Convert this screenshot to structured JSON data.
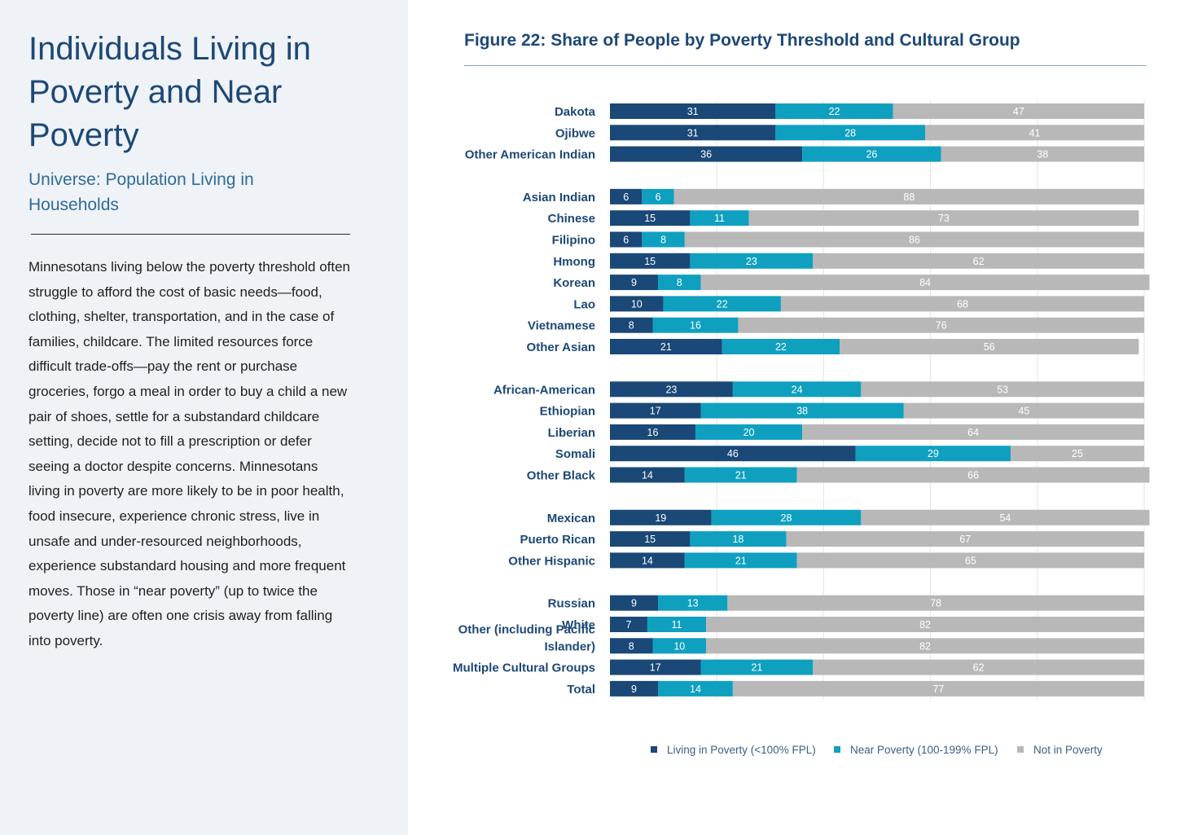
{
  "sidebar": {
    "title": "Individuals Living in Poverty and Near Poverty",
    "subtitle": "Universe: Population Living in Households",
    "body": "Minnesotans living below the poverty threshold often struggle to afford the cost of basic needs—food, clothing, shelter, transportation, and in the case of families, childcare. The limited resources force difficult trade-offs—pay the rent or purchase groceries, forgo a meal in order to buy a child a new pair of shoes, settle for a substandard childcare setting, decide not to fill a prescription or defer seeing a doctor despite concerns. Minnesotans living in poverty are more likely to be in poor health, food insecure, experience chronic stress, live in unsafe and under-resourced neighborhoods, experience substandard housing and more frequent moves. Those in “near poverty” (up to twice the poverty line) are often one crisis away from falling into poverty."
  },
  "chart_data": {
    "type": "bar",
    "orientation": "horizontal",
    "stacked": true,
    "title": "Figure 22: Share of People by Poverty Threshold and Cultural Group",
    "xlim": [
      0,
      100
    ],
    "grid": true,
    "legend_position": "bottom",
    "groups": [
      [
        "Dakota",
        "Ojibwe",
        "Other American Indian"
      ],
      [
        "Asian Indian",
        "Chinese",
        "Filipino",
        "Hmong",
        "Korean",
        "Lao",
        "Vietnamese",
        "Other Asian"
      ],
      [
        "African-American",
        "Ethiopian",
        "Liberian",
        "Somali",
        "Other Black"
      ],
      [
        "Mexican",
        "Puerto Rican",
        "Other Hispanic"
      ],
      [
        "Russian",
        "White",
        "Other (including Pacific Islander)",
        "Multiple Cultural Groups",
        "Total"
      ]
    ],
    "categories": [
      "Dakota",
      "Ojibwe",
      "Other American Indian",
      "Asian Indian",
      "Chinese",
      "Filipino",
      "Hmong",
      "Korean",
      "Lao",
      "Vietnamese",
      "Other Asian",
      "African-American",
      "Ethiopian",
      "Liberian",
      "Somali",
      "Other Black",
      "Mexican",
      "Puerto Rican",
      "Other Hispanic",
      "Russian",
      "White",
      "Other (including Pacific Islander)",
      "Multiple Cultural Groups",
      "Total"
    ],
    "series": [
      {
        "name": "Living in Poverty (<100% FPL)",
        "color": "#1a4877",
        "values": [
          31,
          31,
          36,
          6,
          15,
          6,
          15,
          9,
          10,
          8,
          21,
          23,
          17,
          16,
          46,
          14,
          19,
          15,
          14,
          9,
          7,
          8,
          17,
          9
        ]
      },
      {
        "name": "Near Poverty (100-199% FPL)",
        "color": "#0fa0c0",
        "values": [
          22,
          28,
          26,
          6,
          11,
          8,
          23,
          8,
          22,
          16,
          22,
          24,
          38,
          20,
          29,
          21,
          28,
          18,
          21,
          13,
          11,
          10,
          21,
          14
        ]
      },
      {
        "name": "Not in Poverty",
        "color": "#b8b8b8",
        "values": [
          47,
          41,
          38,
          88,
          73,
          86,
          62,
          84,
          68,
          76,
          56,
          53,
          45,
          64,
          25,
          66,
          54,
          67,
          65,
          78,
          82,
          82,
          62,
          77
        ]
      }
    ]
  }
}
